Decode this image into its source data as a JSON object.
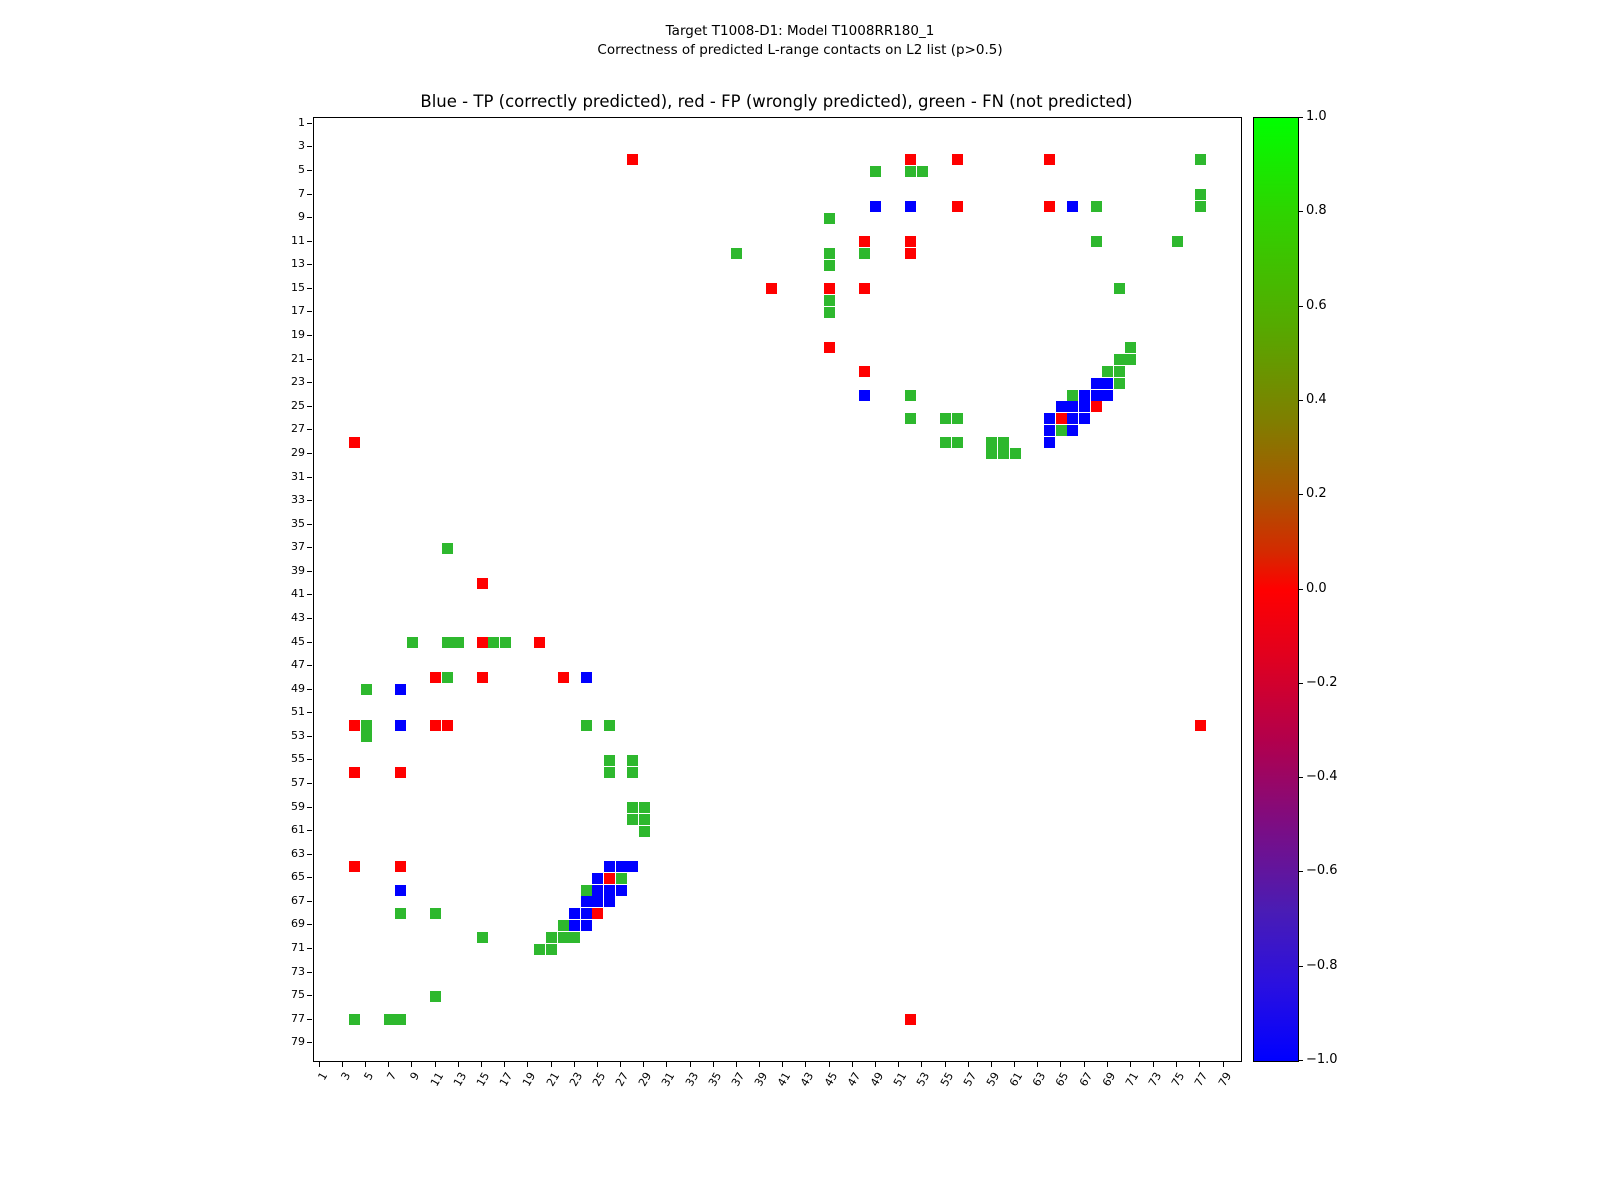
{
  "figure": {
    "suptitle_line1": "Target T1008-D1: Model T1008RR180_1",
    "suptitle_line2": "Correctness of predicted L-range contacts on L2 list (p>0.5)",
    "axes_title": "Blue - TP (correctly predicted), red - FP (wrongly predicted), green - FN (not predicted)"
  },
  "chart_data": {
    "type": "heatmap",
    "title": "Blue - TP (correctly predicted), red - FP (wrongly predicted), green - FN (not predicted)",
    "xlabel": "",
    "ylabel": "",
    "x_range": [
      0.5,
      80.5
    ],
    "y_range": [
      0.5,
      80.5
    ],
    "y_direction": "down",
    "grid": false,
    "symmetric": true,
    "x_ticks": [
      1,
      3,
      5,
      7,
      9,
      11,
      13,
      15,
      17,
      19,
      21,
      23,
      25,
      27,
      29,
      31,
      33,
      35,
      37,
      39,
      41,
      43,
      45,
      47,
      49,
      51,
      53,
      55,
      57,
      59,
      61,
      63,
      65,
      67,
      69,
      71,
      73,
      75,
      77,
      79
    ],
    "y_ticks": [
      1,
      3,
      5,
      7,
      9,
      11,
      13,
      15,
      17,
      19,
      21,
      23,
      25,
      27,
      29,
      31,
      33,
      35,
      37,
      39,
      41,
      43,
      45,
      47,
      49,
      51,
      53,
      55,
      57,
      59,
      61,
      63,
      65,
      67,
      69,
      71,
      73,
      75,
      77,
      79
    ],
    "classes": {
      "TP": "true positive (correctly predicted)",
      "FP": "false positive (wrongly predicted)",
      "FN": "false negative (not predicted)"
    },
    "colors": {
      "TP": "#0000ff",
      "FP": "#ff0000",
      "FN": "#2eb82e"
    },
    "contacts": [
      {
        "i": 4,
        "j": 28,
        "t": "FP"
      },
      {
        "i": 4,
        "j": 52,
        "t": "FP"
      },
      {
        "i": 5,
        "j": 52,
        "t": "FN"
      },
      {
        "i": 5,
        "j": 53,
        "t": "FN"
      },
      {
        "i": 4,
        "j": 56,
        "t": "FP"
      },
      {
        "i": 4,
        "j": 64,
        "t": "FP"
      },
      {
        "i": 4,
        "j": 77,
        "t": "FN"
      },
      {
        "i": 5,
        "j": 49,
        "t": "FN"
      },
      {
        "i": 8,
        "j": 49,
        "t": "TP"
      },
      {
        "i": 8,
        "j": 52,
        "t": "TP"
      },
      {
        "i": 8,
        "j": 56,
        "t": "FP"
      },
      {
        "i": 8,
        "j": 64,
        "t": "FP"
      },
      {
        "i": 8,
        "j": 66,
        "t": "TP"
      },
      {
        "i": 8,
        "j": 68,
        "t": "FN"
      },
      {
        "i": 7,
        "j": 77,
        "t": "FN"
      },
      {
        "i": 8,
        "j": 77,
        "t": "FN"
      },
      {
        "i": 9,
        "j": 45,
        "t": "FN"
      },
      {
        "i": 11,
        "j": 48,
        "t": "FP"
      },
      {
        "i": 12,
        "j": 48,
        "t": "FN"
      },
      {
        "i": 11,
        "j": 52,
        "t": "FP"
      },
      {
        "i": 12,
        "j": 52,
        "t": "FP"
      },
      {
        "i": 11,
        "j": 68,
        "t": "FN"
      },
      {
        "i": 11,
        "j": 75,
        "t": "FN"
      },
      {
        "i": 12,
        "j": 37,
        "t": "FN"
      },
      {
        "i": 12,
        "j": 45,
        "t": "FN"
      },
      {
        "i": 13,
        "j": 45,
        "t": "FN"
      },
      {
        "i": 15,
        "j": 40,
        "t": "FP"
      },
      {
        "i": 15,
        "j": 45,
        "t": "FP"
      },
      {
        "i": 16,
        "j": 45,
        "t": "FN"
      },
      {
        "i": 17,
        "j": 45,
        "t": "FN"
      },
      {
        "i": 15,
        "j": 48,
        "t": "FP"
      },
      {
        "i": 15,
        "j": 70,
        "t": "FN"
      },
      {
        "i": 20,
        "j": 45,
        "t": "FP"
      },
      {
        "i": 22,
        "j": 48,
        "t": "FP"
      },
      {
        "i": 24,
        "j": 48,
        "t": "TP"
      },
      {
        "i": 24,
        "j": 52,
        "t": "FN"
      },
      {
        "i": 26,
        "j": 52,
        "t": "FN"
      },
      {
        "i": 26,
        "j": 55,
        "t": "FN"
      },
      {
        "i": 26,
        "j": 56,
        "t": "FN"
      },
      {
        "i": 28,
        "j": 55,
        "t": "FN"
      },
      {
        "i": 28,
        "j": 56,
        "t": "FN"
      },
      {
        "i": 28,
        "j": 59,
        "t": "FN"
      },
      {
        "i": 28,
        "j": 60,
        "t": "FN"
      },
      {
        "i": 29,
        "j": 59,
        "t": "FN"
      },
      {
        "i": 29,
        "j": 60,
        "t": "FN"
      },
      {
        "i": 29,
        "j": 61,
        "t": "FN"
      },
      {
        "i": 52,
        "j": 77,
        "t": "FP"
      },
      {
        "i": 20,
        "j": 71,
        "t": "FN"
      },
      {
        "i": 21,
        "j": 70,
        "t": "FN"
      },
      {
        "i": 21,
        "j": 71,
        "t": "FN"
      },
      {
        "i": 22,
        "j": 69,
        "t": "FN"
      },
      {
        "i": 22,
        "j": 70,
        "t": "FN"
      },
      {
        "i": 23,
        "j": 68,
        "t": "TP"
      },
      {
        "i": 23,
        "j": 69,
        "t": "TP"
      },
      {
        "i": 23,
        "j": 70,
        "t": "FN"
      },
      {
        "i": 24,
        "j": 66,
        "t": "FN"
      },
      {
        "i": 24,
        "j": 67,
        "t": "TP"
      },
      {
        "i": 24,
        "j": 68,
        "t": "TP"
      },
      {
        "i": 24,
        "j": 69,
        "t": "TP"
      },
      {
        "i": 25,
        "j": 65,
        "t": "TP"
      },
      {
        "i": 25,
        "j": 66,
        "t": "TP"
      },
      {
        "i": 25,
        "j": 67,
        "t": "TP"
      },
      {
        "i": 25,
        "j": 68,
        "t": "FP"
      },
      {
        "i": 26,
        "j": 64,
        "t": "TP"
      },
      {
        "i": 26,
        "j": 65,
        "t": "FP"
      },
      {
        "i": 26,
        "j": 66,
        "t": "TP"
      },
      {
        "i": 26,
        "j": 67,
        "t": "TP"
      },
      {
        "i": 27,
        "j": 64,
        "t": "TP"
      },
      {
        "i": 27,
        "j": 65,
        "t": "FN"
      },
      {
        "i": 27,
        "j": 66,
        "t": "TP"
      },
      {
        "i": 28,
        "j": 64,
        "t": "TP"
      }
    ],
    "colorbar": {
      "tick_labels": [
        "1.0",
        "0.8",
        "0.6",
        "0.4",
        "0.2",
        "0.0",
        "−0.2",
        "−0.4",
        "−0.6",
        "−0.8",
        "−1.0"
      ],
      "value_range": [
        -1.0,
        1.0
      ],
      "gradient_stops": [
        [
          "#00ff00",
          0
        ],
        [
          "#2ed400",
          10
        ],
        [
          "#55aa00",
          22
        ],
        [
          "#7f7f00",
          32
        ],
        [
          "#aa5500",
          40
        ],
        [
          "#d42a00",
          46
        ],
        [
          "#ff0000",
          50
        ],
        [
          "#e1001e",
          57
        ],
        [
          "#b2004c",
          66
        ],
        [
          "#7c0d83",
          75
        ],
        [
          "#4a1cb4",
          84
        ],
        [
          "#2a10e0",
          92
        ],
        [
          "#0000ff",
          100
        ]
      ]
    }
  }
}
